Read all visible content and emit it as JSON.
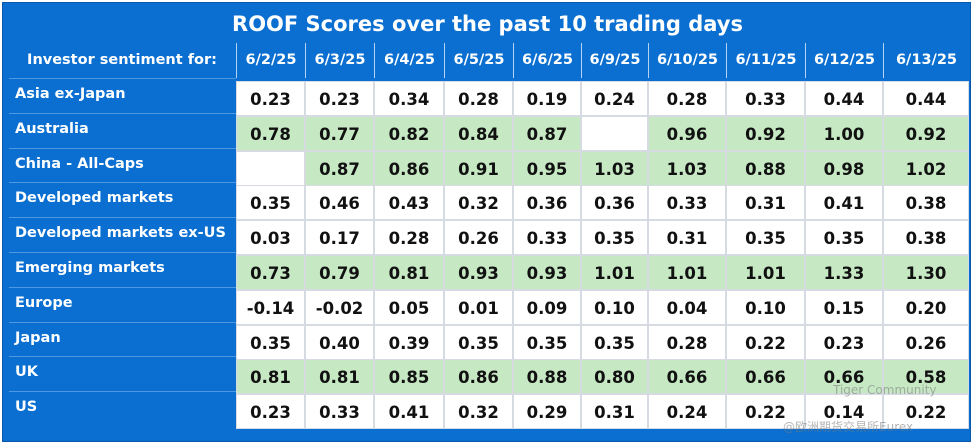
{
  "title": "ROOF Scores over the past 10 trading days",
  "header_label": "Investor sentiment for:",
  "dates": [
    "6/2/25",
    "6/3/25",
    "6/4/25",
    "6/5/25",
    "6/6/25",
    "6/9/25",
    "6/10/25",
    "6/11/25",
    "6/12/25",
    "6/13/25"
  ],
  "colors": {
    "header_bg": "#0a6fd1",
    "positive_fill": "#c6e9c4",
    "cell_bg": "#ffffff"
  },
  "rows": [
    {
      "label": "Asia ex-Japan",
      "highlight": false,
      "values": [
        "0.23",
        "0.23",
        "0.34",
        "0.28",
        "0.19",
        "0.24",
        "0.28",
        "0.33",
        "0.44",
        "0.44"
      ]
    },
    {
      "label": "Australia",
      "highlight": true,
      "values": [
        "0.78",
        "0.77",
        "0.82",
        "0.84",
        "0.87",
        "",
        "0.96",
        "0.92",
        "1.00",
        "0.92"
      ]
    },
    {
      "label": "China - All-Caps",
      "highlight": true,
      "values": [
        "",
        "0.87",
        "0.86",
        "0.91",
        "0.95",
        "1.03",
        "1.03",
        "0.88",
        "0.98",
        "1.02"
      ]
    },
    {
      "label": "Developed markets",
      "highlight": false,
      "values": [
        "0.35",
        "0.46",
        "0.43",
        "0.32",
        "0.36",
        "0.36",
        "0.33",
        "0.31",
        "0.41",
        "0.38"
      ]
    },
    {
      "label": "Developed markets ex-US",
      "highlight": false,
      "values": [
        "0.03",
        "0.17",
        "0.28",
        "0.26",
        "0.33",
        "0.35",
        "0.31",
        "0.35",
        "0.35",
        "0.38"
      ]
    },
    {
      "label": "Emerging markets",
      "highlight": true,
      "values": [
        "0.73",
        "0.79",
        "0.81",
        "0.93",
        "0.93",
        "1.01",
        "1.01",
        "1.01",
        "1.33",
        "1.30"
      ]
    },
    {
      "label": "Europe",
      "highlight": false,
      "values": [
        "-0.14",
        "-0.02",
        "0.05",
        "0.01",
        "0.09",
        "0.10",
        "0.04",
        "0.10",
        "0.15",
        "0.20"
      ]
    },
    {
      "label": "Japan",
      "highlight": false,
      "values": [
        "0.35",
        "0.40",
        "0.39",
        "0.35",
        "0.35",
        "0.35",
        "0.28",
        "0.22",
        "0.23",
        "0.26"
      ]
    },
    {
      "label": "UK",
      "highlight": true,
      "values": [
        "0.81",
        "0.81",
        "0.85",
        "0.86",
        "0.88",
        "0.80",
        "0.66",
        "0.66",
        "0.66",
        "0.58"
      ]
    },
    {
      "label": "US",
      "highlight": false,
      "values": [
        "0.23",
        "0.33",
        "0.41",
        "0.32",
        "0.29",
        "0.31",
        "0.24",
        "0.22",
        "0.14",
        "0.22"
      ]
    }
  ],
  "watermark": {
    "line1": "Tiger Community",
    "line2": "@欧洲期货交易所Eurex"
  }
}
